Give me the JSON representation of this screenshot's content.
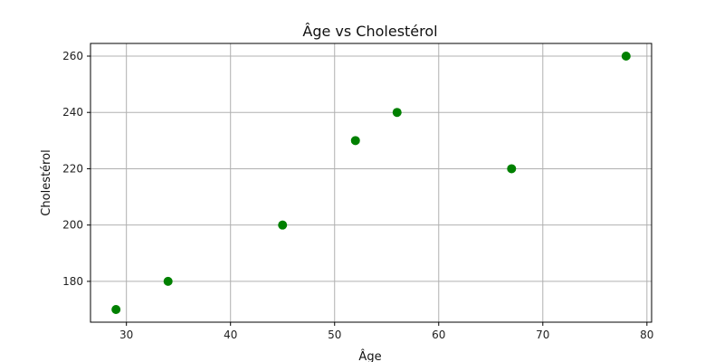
{
  "chart_data": {
    "type": "scatter",
    "title": "Âge vs Cholestérol",
    "xlabel": "Âge",
    "ylabel": "Cholestérol",
    "xlim": [
      26.55,
      80.45
    ],
    "ylim": [
      165.5,
      264.5
    ],
    "xticks": [
      30,
      40,
      50,
      60,
      70,
      80
    ],
    "yticks": [
      180,
      200,
      220,
      240,
      260
    ],
    "grid": true,
    "marker_color": "#008000",
    "points": [
      {
        "x": 29,
        "y": 170
      },
      {
        "x": 34,
        "y": 180
      },
      {
        "x": 45,
        "y": 200
      },
      {
        "x": 52,
        "y": 230
      },
      {
        "x": 56,
        "y": 240
      },
      {
        "x": 67,
        "y": 220
      },
      {
        "x": 78,
        "y": 260
      }
    ]
  }
}
